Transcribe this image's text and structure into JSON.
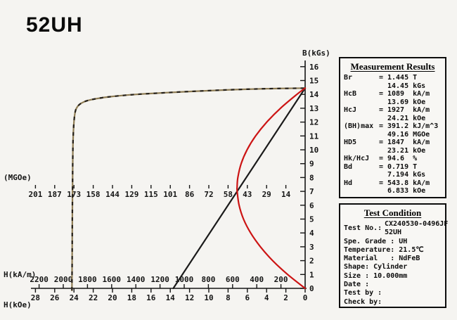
{
  "page": {
    "title": "52UH",
    "background": "#f5f4f1"
  },
  "chart_data": {
    "type": "line",
    "title": "52UH",
    "x_axis": {
      "label_kam": "H(kA/m)",
      "label_koe": "H(kOe)",
      "ticks_kam": [
        2200,
        2000,
        1800,
        1600,
        1400,
        1200,
        1000,
        800,
        600,
        400,
        200
      ],
      "ticks_koe": [
        28,
        26,
        24,
        22,
        20,
        18,
        16,
        14,
        12,
        10,
        8,
        6,
        4,
        2,
        0
      ],
      "direction": "H increases right-to-left, zero at right axis",
      "range_koe": [
        0,
        28.5
      ]
    },
    "y_axis": {
      "label": "B(kGs)",
      "ticks": [
        0,
        1,
        2,
        3,
        4,
        5,
        6,
        7,
        8,
        9,
        10,
        11,
        12,
        13,
        14,
        15,
        16
      ],
      "range": [
        0,
        16.5
      ]
    },
    "bh_scale": {
      "label": "(MGOe)",
      "ticks": [
        201,
        187,
        173,
        158,
        144,
        129,
        115,
        101,
        86,
        72,
        58,
        43,
        29,
        14
      ]
    },
    "grid": false,
    "legend": "none",
    "series": [
      {
        "name": "intrinsic-JH-curve",
        "color": "#8f7d55",
        "dash_overlay_color": "#26211a",
        "units": "[H_kOe, B_kGs]",
        "points": [
          [
            24.21,
            -0.15
          ],
          [
            24.19,
            2
          ],
          [
            24.17,
            5
          ],
          [
            24.14,
            8
          ],
          [
            24.1,
            10.5
          ],
          [
            24.0,
            12
          ],
          [
            23.85,
            12.8
          ],
          [
            23.6,
            13.15
          ],
          [
            23.2,
            13.38
          ],
          [
            22.6,
            13.55
          ],
          [
            21.6,
            13.7
          ],
          [
            20.0,
            13.85
          ],
          [
            17.5,
            14.0
          ],
          [
            14.5,
            14.12
          ],
          [
            11.0,
            14.24
          ],
          [
            7.5,
            14.34
          ],
          [
            4.0,
            14.41
          ],
          [
            0,
            14.45
          ]
        ]
      },
      {
        "name": "normal-BH-demagnetization-line",
        "color": "#1a1a1a",
        "units": "[H_kOe, B_kGs]",
        "points": [
          [
            13.69,
            0
          ],
          [
            0,
            14.45
          ]
        ]
      },
      {
        "name": "energy-product-curve",
        "color": "#cc1414",
        "units": "[BH_MGOe, B_kGs]",
        "points": [
          [
            0,
            0
          ],
          [
            12.7,
            1
          ],
          [
            23.6,
            2
          ],
          [
            32.5,
            3
          ],
          [
            39.6,
            4
          ],
          [
            44.8,
            5
          ],
          [
            48.0,
            6
          ],
          [
            49.4,
            7
          ],
          [
            49.45,
            7.3
          ],
          [
            48.9,
            8
          ],
          [
            46.5,
            9
          ],
          [
            42.2,
            10
          ],
          [
            36.0,
            11
          ],
          [
            27.9,
            12
          ],
          [
            17.9,
            13
          ],
          [
            6.0,
            14
          ],
          [
            0,
            14.45
          ]
        ]
      }
    ],
    "key_points": {
      "Br_kGs": 14.45,
      "HcB_kOe": 13.69,
      "HcJ_kOe": 24.21,
      "BHmax_MGOe": 49.16,
      "operating_point": {
        "Bd_kGs": 7.194,
        "Hd_kOe": 6.833
      }
    }
  },
  "measurement_results": {
    "title": "Measurement Results",
    "rows": [
      {
        "label": "Br",
        "value1": "1.445 T",
        "value2": "14.45 kGs"
      },
      {
        "label": "HcB",
        "value1": "1089  kA/m",
        "value2": "13.69 kOe"
      },
      {
        "label": "HcJ",
        "value1": "1927  kA/m",
        "value2": "24.21 kOe"
      },
      {
        "label": "(BH)max",
        "value1": "391.2 kJ/m^3",
        "value2": "49.16 MGOe"
      },
      {
        "label": "HD5",
        "value1": "1847  kA/m",
        "value2": "23.21 kOe"
      },
      {
        "label": "Hk/HcJ",
        "value1": "94.6  %",
        "value2": ""
      },
      {
        "label": "Bd",
        "value1": "0.719 T",
        "value2": "7.194 kGs"
      },
      {
        "label": "Hd",
        "value1": "543.8 kA/m",
        "value2": "6.833 kOe"
      }
    ]
  },
  "test_condition": {
    "title": "Test Condition",
    "test_no_label": "Test No.:",
    "test_no_value_line1": "CX240530-0496JF",
    "test_no_value_line2": "52UH",
    "lines": [
      "Spe. Grade : UH",
      "Temperature: 21.5℃",
      "Material   : NdFeB",
      "Shape: Cylinder",
      "Size : 10.000mm",
      "Date :",
      "Test by :",
      "Check by:"
    ]
  }
}
